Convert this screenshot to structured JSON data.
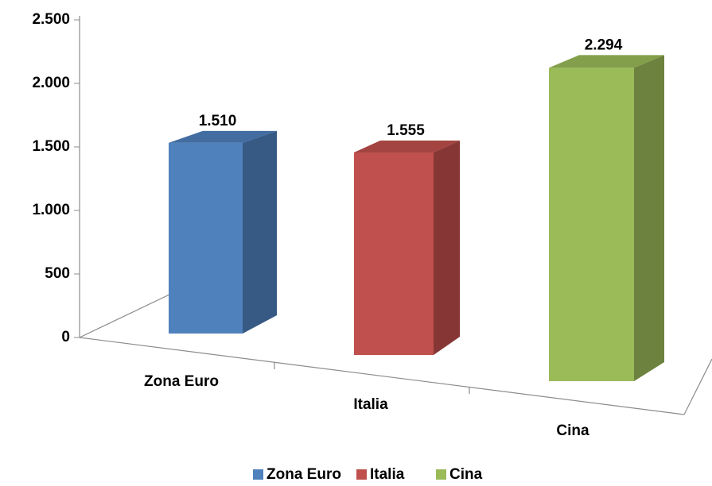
{
  "chart_data": {
    "type": "bar3d",
    "categories": [
      "Zona Euro",
      "Italia",
      "Cina"
    ],
    "values": [
      1510,
      1555,
      2294
    ],
    "value_labels": [
      "1.510",
      "1.555",
      "2.294"
    ],
    "colors": [
      "#4f81bd",
      "#c0504d",
      "#9bbb59"
    ],
    "ylim": [
      0,
      2500
    ],
    "yticks": [
      0,
      500,
      {
        "value": 1000,
        "label": "1.000"
      },
      {
        "value": 1500,
        "label": "1.500"
      },
      {
        "value": 2000,
        "label": "2.000"
      },
      {
        "value": 2500,
        "label": "2.500"
      }
    ],
    "legend": "bottom"
  }
}
